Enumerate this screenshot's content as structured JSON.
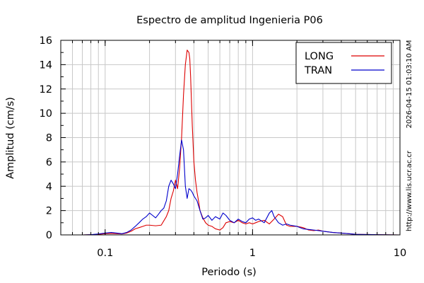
{
  "chart_data": {
    "type": "line",
    "title": "Espectro de amplitud Ingenieria P06",
    "xlabel": "Periodo (s)",
    "ylabel": "Amplitud (cm/s)",
    "x_scale": "log",
    "xlim": [
      0.05,
      10
    ],
    "ylim": [
      0,
      16
    ],
    "x_ticks": [
      {
        "value": 0.1,
        "label": "0.1"
      },
      {
        "value": 1,
        "label": "1"
      },
      {
        "value": 10,
        "label": "10"
      }
    ],
    "y_ticks": [
      {
        "value": 0,
        "label": "0"
      },
      {
        "value": 2,
        "label": "2"
      },
      {
        "value": 4,
        "label": "4"
      },
      {
        "value": 6,
        "label": "6"
      },
      {
        "value": 8,
        "label": "8"
      },
      {
        "value": 10,
        "label": "10"
      },
      {
        "value": 12,
        "label": "12"
      },
      {
        "value": 14,
        "label": "14"
      },
      {
        "value": 16,
        "label": "16"
      }
    ],
    "grid": true,
    "legend_position": "top-right",
    "right_text": {
      "timestamp": "2026-04-15 01:03:10 AM",
      "url": "http://www.lis.ucr.ac.cr"
    },
    "series": [
      {
        "name": "LONG",
        "color": "#dd0000",
        "x": [
          0.05,
          0.07,
          0.08,
          0.09,
          0.1,
          0.11,
          0.12,
          0.13,
          0.14,
          0.15,
          0.16,
          0.17,
          0.18,
          0.19,
          0.2,
          0.22,
          0.24,
          0.26,
          0.27,
          0.28,
          0.29,
          0.3,
          0.31,
          0.32,
          0.33,
          0.34,
          0.35,
          0.36,
          0.37,
          0.375,
          0.38,
          0.39,
          0.4,
          0.41,
          0.42,
          0.43,
          0.44,
          0.46,
          0.48,
          0.5,
          0.53,
          0.56,
          0.6,
          0.63,
          0.66,
          0.7,
          0.75,
          0.8,
          0.85,
          0.9,
          0.95,
          1.0,
          1.05,
          1.1,
          1.2,
          1.3,
          1.4,
          1.5,
          1.6,
          1.7,
          1.8,
          2.0,
          2.2,
          2.4,
          2.6,
          2.8,
          3.0,
          3.5,
          4.0,
          4.5,
          5.0,
          6.0,
          7.0,
          8.0,
          10.0
        ],
        "y": [
          0.0,
          0.0,
          0.02,
          0.05,
          0.1,
          0.12,
          0.1,
          0.08,
          0.15,
          0.3,
          0.5,
          0.6,
          0.7,
          0.8,
          0.8,
          0.75,
          0.8,
          1.5,
          2.0,
          3.0,
          3.6,
          4.5,
          3.8,
          5.5,
          8.0,
          11.5,
          14.0,
          15.2,
          15.0,
          14.5,
          13.0,
          9.0,
          6.0,
          4.5,
          3.5,
          2.8,
          2.0,
          1.4,
          1.0,
          0.8,
          0.7,
          0.5,
          0.4,
          0.6,
          1.0,
          1.1,
          1.0,
          1.2,
          1.0,
          0.9,
          1.0,
          0.9,
          1.0,
          1.1,
          1.2,
          0.9,
          1.3,
          1.7,
          1.5,
          0.8,
          0.7,
          0.7,
          0.6,
          0.4,
          0.35,
          0.4,
          0.3,
          0.2,
          0.15,
          0.1,
          0.05,
          0.03,
          0.02,
          0.01,
          0.0
        ]
      },
      {
        "name": "TRAN",
        "color": "#0000cc",
        "x": [
          0.05,
          0.07,
          0.08,
          0.09,
          0.1,
          0.11,
          0.12,
          0.13,
          0.14,
          0.15,
          0.16,
          0.17,
          0.18,
          0.19,
          0.2,
          0.21,
          0.22,
          0.23,
          0.24,
          0.25,
          0.26,
          0.27,
          0.28,
          0.29,
          0.3,
          0.31,
          0.32,
          0.33,
          0.34,
          0.345,
          0.35,
          0.36,
          0.37,
          0.38,
          0.39,
          0.4,
          0.42,
          0.44,
          0.46,
          0.48,
          0.5,
          0.53,
          0.56,
          0.6,
          0.63,
          0.66,
          0.7,
          0.75,
          0.8,
          0.85,
          0.9,
          0.95,
          1.0,
          1.05,
          1.1,
          1.2,
          1.3,
          1.35,
          1.4,
          1.5,
          1.6,
          1.7,
          1.8,
          2.0,
          2.2,
          2.4,
          2.6,
          2.8,
          3.0,
          3.5,
          4.0,
          4.5,
          5.0,
          6.0,
          7.0,
          8.0,
          10.0
        ],
        "y": [
          0.0,
          0.0,
          0.02,
          0.08,
          0.15,
          0.2,
          0.15,
          0.1,
          0.2,
          0.4,
          0.7,
          1.0,
          1.3,
          1.5,
          1.8,
          1.6,
          1.4,
          1.7,
          2.0,
          2.2,
          2.8,
          4.0,
          4.5,
          4.2,
          3.8,
          5.0,
          6.5,
          7.8,
          7.0,
          5.5,
          4.0,
          3.0,
          3.8,
          3.7,
          3.5,
          3.2,
          2.8,
          2.0,
          1.3,
          1.4,
          1.6,
          1.2,
          1.5,
          1.3,
          1.8,
          1.6,
          1.2,
          1.0,
          1.3,
          1.1,
          1.0,
          1.3,
          1.4,
          1.2,
          1.3,
          1.0,
          1.8,
          2.0,
          1.5,
          1.0,
          0.8,
          0.9,
          0.8,
          0.7,
          0.5,
          0.45,
          0.4,
          0.35,
          0.3,
          0.2,
          0.15,
          0.1,
          0.05,
          0.03,
          0.02,
          0.01,
          0.0
        ]
      }
    ]
  }
}
